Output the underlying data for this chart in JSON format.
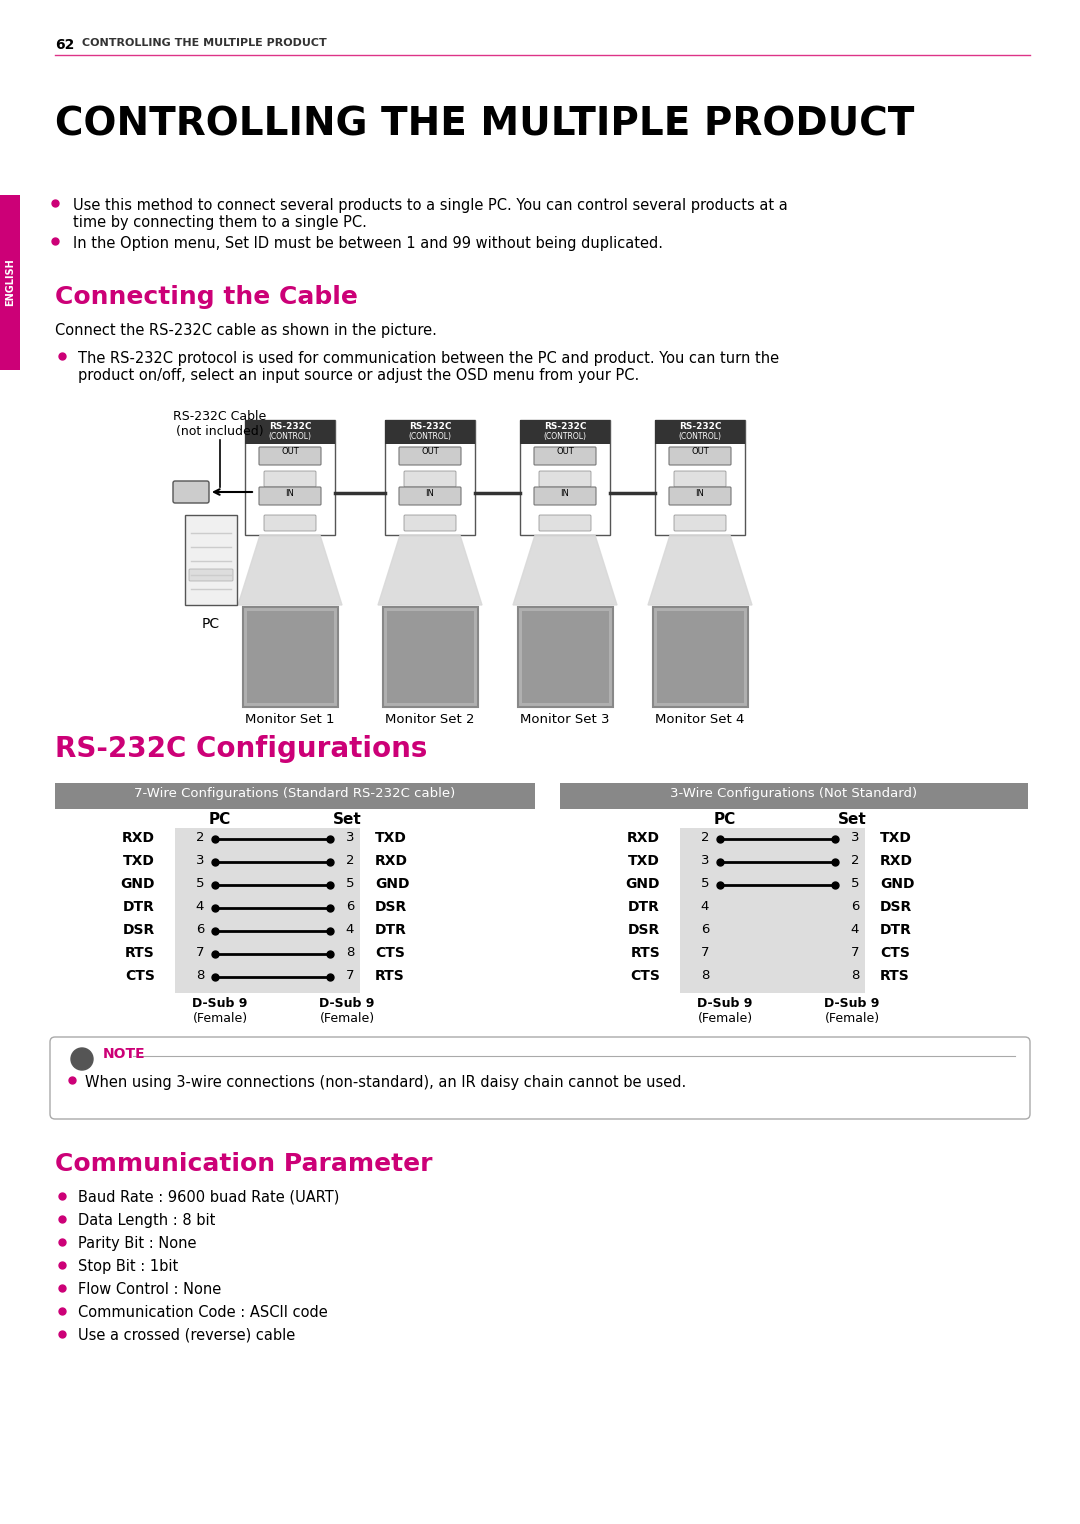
{
  "page_num": "62",
  "header_text": "CONTROLLING THE MULTIPLE PRODUCT",
  "main_title": "CONTROLLING THE MULTIPLE PRODUCT",
  "english_tab": "ENGLISH",
  "section1_title": "Connecting the Cable",
  "section1_color": "#cc0077",
  "section1_body": "Connect the RS-232C cable as shown in the picture.",
  "section1_bullet_line1": "The RS-232C protocol is used for communication between the PC and product. You can turn the",
  "section1_bullet_line2": "product on/off, select an input source or adjust the OSD menu from your PC.",
  "intro_bullet1_line1": "Use this method to connect several products to a single PC. You can control several products at a",
  "intro_bullet1_line2": "time by connecting them to a single PC.",
  "intro_bullet2": "In the Option menu, Set ID must be between 1 and 99 without being duplicated.",
  "section2_title": "RS-232C Configurations",
  "section2_color": "#cc0077",
  "wire7_header": "7-Wire Configurations (Standard RS-232C cable)",
  "wire3_header": "3-Wire Configurations (Not Standard)",
  "wire7_pc_labels": [
    "RXD",
    "TXD",
    "GND",
    "DTR",
    "DSR",
    "RTS",
    "CTS"
  ],
  "wire7_pc_pins": [
    "2",
    "3",
    "5",
    "4",
    "6",
    "7",
    "8"
  ],
  "wire7_set_pins": [
    "3",
    "2",
    "5",
    "6",
    "4",
    "8",
    "7"
  ],
  "wire7_set_labels": [
    "TXD",
    "RXD",
    "GND",
    "DSR",
    "DTR",
    "CTS",
    "RTS"
  ],
  "wire3_pc_labels": [
    "RXD",
    "TXD",
    "GND",
    "DTR",
    "DSR",
    "RTS",
    "CTS"
  ],
  "wire3_pc_pins": [
    "2",
    "3",
    "5",
    "4",
    "6",
    "7",
    "8"
  ],
  "wire3_set_pins": [
    "3",
    "2",
    "5",
    "6",
    "4",
    "7",
    "8"
  ],
  "wire3_set_labels": [
    "TXD",
    "RXD",
    "GND",
    "DSR",
    "DTR",
    "CTS",
    "RTS"
  ],
  "wire3_connected": [
    true,
    true,
    true,
    false,
    false,
    false,
    false
  ],
  "note_text": "When using 3-wire connections (non-standard), an IR daisy chain cannot be used.",
  "comm_title": "Communication Parameter",
  "comm_color": "#cc0077",
  "comm_bullets": [
    "Baud Rate : 9600 buad Rate (UART)",
    "Data Length : 8 bit",
    "Parity Bit : None",
    "Stop Bit : 1bit",
    "Flow Control : None",
    "Communication Code : ASCII code",
    "Use a crossed (reverse) cable"
  ],
  "bg_color": "#ffffff",
  "text_color": "#000000",
  "header_line_color": "#dd3388",
  "tab_color": "#cc0077",
  "gray_header_color": "#888888",
  "table_bg_color": "#dddddd"
}
